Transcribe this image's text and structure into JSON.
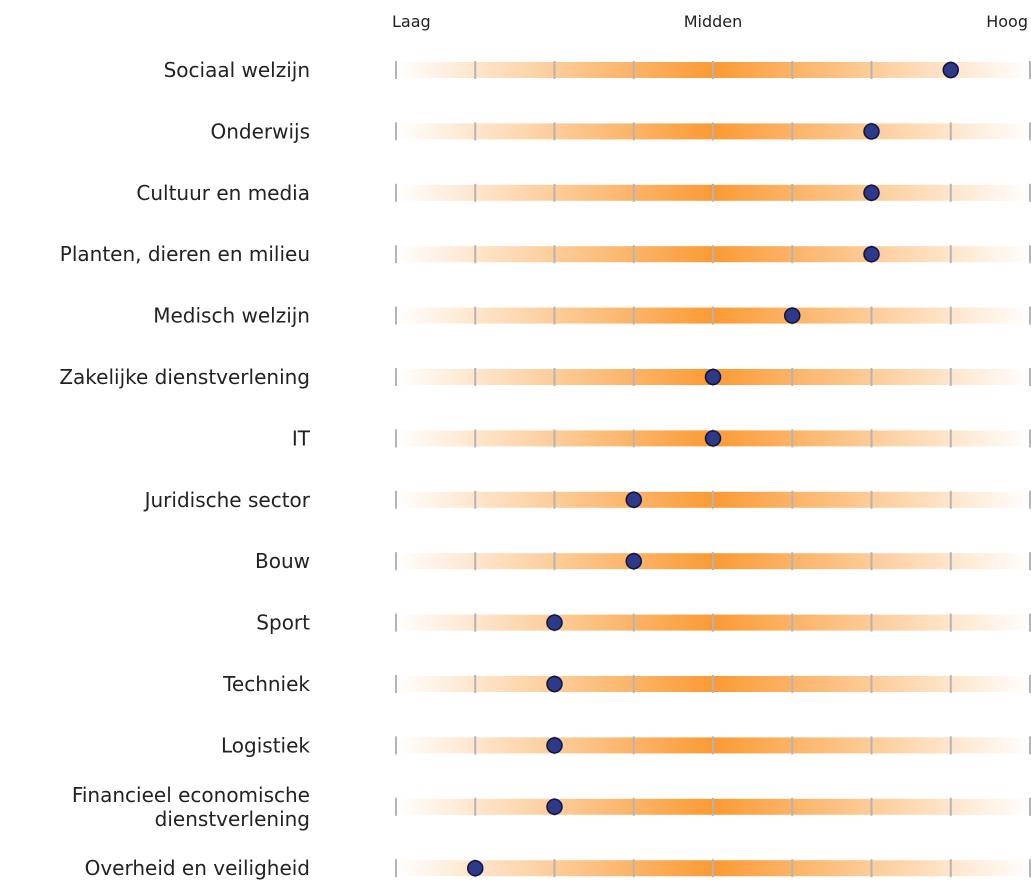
{
  "chart_data": {
    "type": "scatter",
    "scale_labels": [
      "Laag",
      "Midden",
      "Hoog"
    ],
    "xlim": [
      0,
      8
    ],
    "tick_count": 9,
    "colors": {
      "band_center": "#fb9a34",
      "band_edge": "#ffffff",
      "tick": "#b4b4b4",
      "dot_fill": "#2e3a87",
      "dot_stroke": "#0d1440",
      "text": "#222222"
    },
    "categories": [
      {
        "label": [
          "Sociaal welzijn"
        ],
        "value": 7
      },
      {
        "label": [
          "Onderwijs"
        ],
        "value": 6
      },
      {
        "label": [
          "Cultuur en media"
        ],
        "value": 6
      },
      {
        "label": [
          "Planten, dieren en milieu"
        ],
        "value": 6
      },
      {
        "label": [
          "Medisch welzijn"
        ],
        "value": 5
      },
      {
        "label": [
          "Zakelijke dienstverlening"
        ],
        "value": 4
      },
      {
        "label": [
          "IT"
        ],
        "value": 4
      },
      {
        "label": [
          "Juridische sector"
        ],
        "value": 3
      },
      {
        "label": [
          "Bouw"
        ],
        "value": 3
      },
      {
        "label": [
          "Sport"
        ],
        "value": 2
      },
      {
        "label": [
          "Techniek"
        ],
        "value": 2
      },
      {
        "label": [
          "Logistiek"
        ],
        "value": 2
      },
      {
        "label": [
          "Financieel economische",
          "dienstverlening"
        ],
        "value": 2
      },
      {
        "label": [
          "Overheid en veiligheid"
        ],
        "value": 1
      }
    ]
  }
}
